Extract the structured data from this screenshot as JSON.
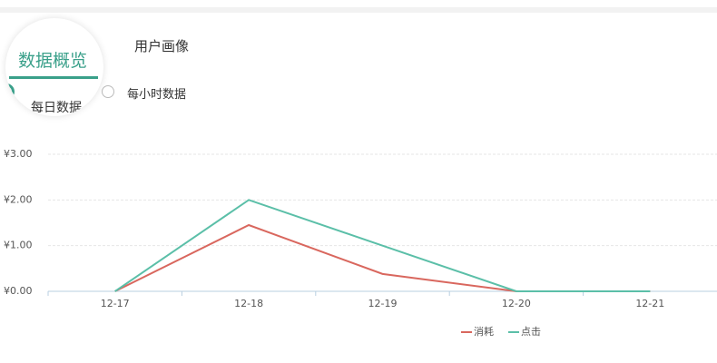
{
  "tabs": [
    "数据概览",
    "用户画像"
  ],
  "options": [
    "每日数据",
    "每小时数据"
  ],
  "chart_data": {
    "type": "line",
    "categories": [
      "12-17",
      "12-18",
      "12-19",
      "12-20",
      "12-21"
    ],
    "series": [
      {
        "name": "消耗",
        "color": "#d9675e",
        "values": [
          0,
          1.45,
          0.38,
          0,
          0
        ]
      },
      {
        "name": "点击",
        "color": "#5bbfa8",
        "values": [
          0,
          2.0,
          1.0,
          0,
          0
        ]
      }
    ],
    "ylim": [
      0,
      3
    ],
    "yticks": [
      {
        "value": 0,
        "label": "¥0.00"
      },
      {
        "value": 1,
        "label": "¥1.00"
      },
      {
        "value": 2,
        "label": "¥2.00"
      },
      {
        "value": 3,
        "label": "¥3.00"
      }
    ],
    "grid": true
  }
}
